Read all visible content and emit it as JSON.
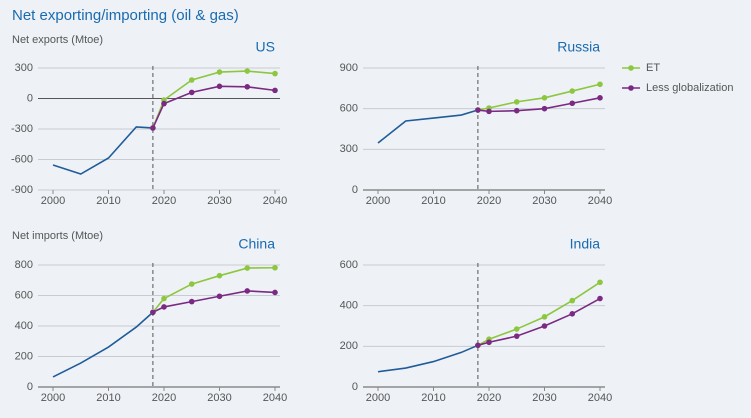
{
  "title": "Net exporting/importing (oil & gas)",
  "chart_data": [
    {
      "type": "line",
      "title": "US",
      "ylabel": "Net exports (Mtoe)",
      "xlim": [
        2000,
        2040
      ],
      "xticks": [
        2000,
        2010,
        2020,
        2030,
        2040
      ],
      "ylim": [
        -900,
        300
      ],
      "yticks": [
        -900,
        -600,
        -300,
        0,
        300
      ],
      "grid": true,
      "vline": 2018,
      "series": [
        {
          "color": "#1f5c99",
          "x": [
            2000,
            2005,
            2010,
            2015,
            2018
          ],
          "values": [
            -654,
            -743,
            -585,
            -280,
            -290
          ]
        },
        {
          "name": "ET",
          "color": "#8dc63f",
          "x": [
            2018,
            2020,
            2025,
            2030,
            2035,
            2040
          ],
          "values": [
            -290,
            -15,
            182,
            260,
            270,
            245
          ]
        },
        {
          "name": "Less globalization",
          "color": "#7a2a82",
          "x": [
            2018,
            2020,
            2025,
            2030,
            2035,
            2040
          ],
          "values": [
            -290,
            -50,
            60,
            120,
            115,
            80
          ]
        }
      ]
    },
    {
      "type": "line",
      "title": "Russia",
      "legend": "right",
      "xlim": [
        2000,
        2040
      ],
      "xticks": [
        2000,
        2010,
        2020,
        2030,
        2040
      ],
      "ylim": [
        0,
        900
      ],
      "yticks": [
        0,
        300,
        600,
        900
      ],
      "grid": true,
      "vline": 2018,
      "series": [
        {
          "color": "#1f5c99",
          "x": [
            2000,
            2005,
            2010,
            2015,
            2018
          ],
          "values": [
            347,
            509,
            531,
            553,
            590
          ]
        },
        {
          "name": "ET",
          "color": "#8dc63f",
          "x": [
            2018,
            2020,
            2025,
            2030,
            2035,
            2040
          ],
          "values": [
            590,
            605,
            650,
            680,
            730,
            780
          ]
        },
        {
          "name": "Less globalization",
          "color": "#7a2a82",
          "x": [
            2018,
            2020,
            2025,
            2030,
            2035,
            2040
          ],
          "values": [
            590,
            580,
            585,
            600,
            640,
            680
          ]
        }
      ]
    },
    {
      "type": "line",
      "title": "China",
      "ylabel": "Net imports (Mtoe)",
      "xlim": [
        2000,
        2040
      ],
      "xticks": [
        2000,
        2010,
        2020,
        2030,
        2040
      ],
      "ylim": [
        0,
        800
      ],
      "yticks": [
        0,
        200,
        400,
        600,
        800
      ],
      "grid": true,
      "vline": 2018,
      "series": [
        {
          "color": "#1f5c99",
          "x": [
            2000,
            2005,
            2010,
            2015,
            2018
          ],
          "values": [
            66,
            157,
            262,
            393,
            490
          ]
        },
        {
          "name": "ET",
          "color": "#8dc63f",
          "x": [
            2018,
            2020,
            2025,
            2030,
            2035,
            2040
          ],
          "values": [
            490,
            580,
            675,
            730,
            780,
            782
          ]
        },
        {
          "name": "Less globalization",
          "color": "#7a2a82",
          "x": [
            2018,
            2020,
            2025,
            2030,
            2035,
            2040
          ],
          "values": [
            490,
            525,
            560,
            595,
            630,
            620
          ]
        }
      ]
    },
    {
      "type": "line",
      "title": "India",
      "xlim": [
        2000,
        2040
      ],
      "xticks": [
        2000,
        2010,
        2020,
        2030,
        2040
      ],
      "ylim": [
        0,
        600
      ],
      "yticks": [
        0,
        200,
        400,
        600
      ],
      "grid": true,
      "vline": 2018,
      "series": [
        {
          "color": "#1f5c99",
          "x": [
            2000,
            2005,
            2010,
            2015,
            2018
          ],
          "values": [
            75,
            93,
            125,
            170,
            205
          ]
        },
        {
          "name": "ET",
          "color": "#8dc63f",
          "x": [
            2018,
            2020,
            2025,
            2030,
            2035,
            2040
          ],
          "values": [
            205,
            235,
            285,
            345,
            425,
            515
          ]
        },
        {
          "name": "Less globalization",
          "color": "#7a2a82",
          "x": [
            2018,
            2020,
            2025,
            2030,
            2035,
            2040
          ],
          "values": [
            205,
            220,
            250,
            300,
            360,
            435
          ]
        }
      ]
    }
  ]
}
